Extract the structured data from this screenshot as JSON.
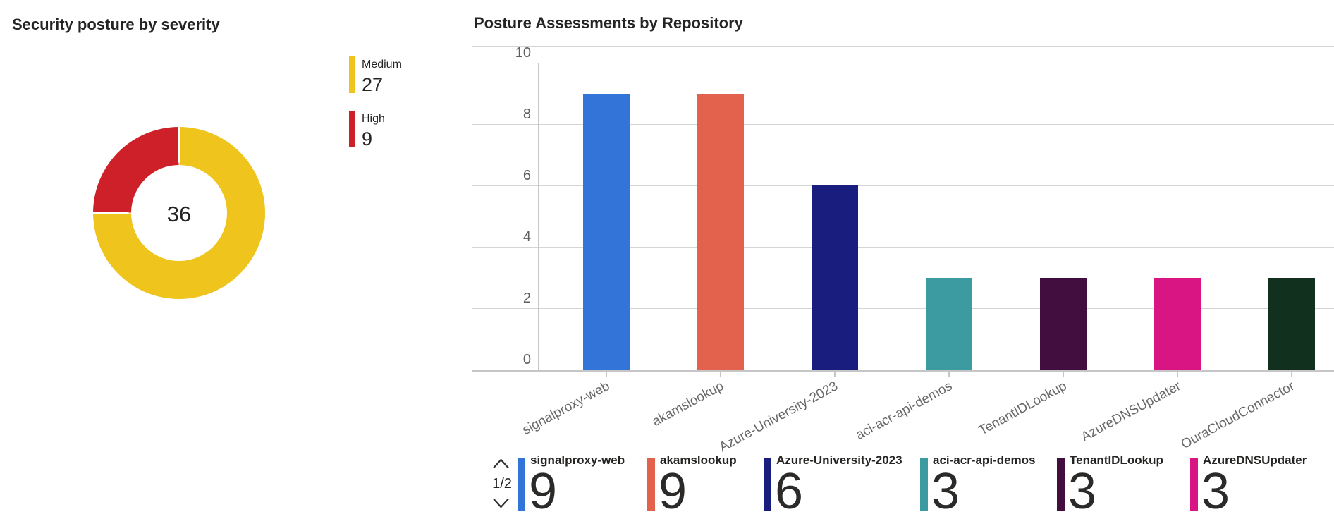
{
  "chart_data": [
    {
      "type": "pie",
      "title": "Security posture by severity",
      "center_total": 36,
      "legend_position": "right",
      "slices": [
        {
          "label": "Medium",
          "value": 27,
          "color": "#EEC41D"
        },
        {
          "label": "High",
          "value": 9,
          "color": "#CE2029"
        }
      ]
    },
    {
      "type": "bar",
      "title": "Posture Assessments by Repository",
      "categories": [
        "signalproxy-web",
        "akamslookup",
        "Azure-University-2023",
        "aci-acr-api-demos",
        "TenantIDLookup",
        "AzureDNSUpdater",
        "OuraCloudConnector"
      ],
      "values": [
        9,
        9,
        6,
        3,
        3,
        3,
        3
      ],
      "colors": [
        "#3374D9",
        "#E2624E",
        "#191E7E",
        "#3B9BA1",
        "#420D3F",
        "#D91583",
        "#11301E"
      ],
      "xlabel": "",
      "ylabel": "",
      "ylim": [
        0,
        10
      ],
      "y_ticks": [
        0,
        2,
        4,
        6,
        8,
        10
      ],
      "grid": true,
      "legend": {
        "pager": "1/2",
        "page_items": [
          {
            "label": "signalproxy-web",
            "value": 9
          },
          {
            "label": "akamslookup",
            "value": 9
          },
          {
            "label": "Azure-University-2023",
            "value": 6
          },
          {
            "label": "aci-acr-api-demos",
            "value": 3
          },
          {
            "label": "TenantIDLookup",
            "value": 3
          },
          {
            "label": "AzureDNSUpdater",
            "value": 3
          }
        ]
      }
    }
  ]
}
